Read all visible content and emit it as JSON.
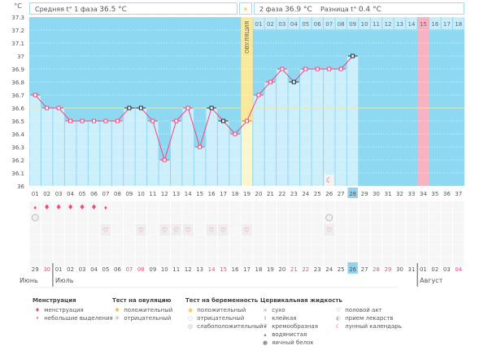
{
  "header": {
    "phase1_label": "Средняя t° 1 фаза",
    "phase1_value": "36.5 °C",
    "phase2_label": "2 фаза",
    "phase2_value": "36.9 °C",
    "diff_label": "Разница t°",
    "diff_value": "0.4 °C"
  },
  "colors": {
    "plot_bg": "#8fd8f2",
    "bar": "#cdeefb",
    "line": "#f0487a",
    "coverline": "#f5ec8c",
    "ovulation": "#fbe89a",
    "pink_col": "#f7b3c3",
    "highlight": "#8fd3ee",
    "weekend": "#f0487a"
  },
  "chart_data": {
    "type": "line",
    "yunit": "°C",
    "ylim": [
      36,
      37.3
    ],
    "yticks": [
      "36",
      "36.1",
      "36.2",
      "36.3",
      "36.4",
      "36.5",
      "36.6",
      "36.7",
      "36.8",
      "36.9",
      "37",
      "37.1",
      "37.2",
      "37.3"
    ],
    "cycle_days": [
      "01",
      "02",
      "03",
      "04",
      "05",
      "06",
      "07",
      "08",
      "09",
      "10",
      "11",
      "12",
      "13",
      "14",
      "15",
      "16",
      "17",
      "18",
      "19",
      "20",
      "21",
      "22",
      "23",
      "24",
      "25",
      "26",
      "27",
      "28",
      "29",
      "30",
      "31",
      "32",
      "33",
      "34",
      "35",
      "36",
      "37"
    ],
    "temperatures": [
      36.7,
      36.6,
      36.6,
      36.5,
      36.5,
      36.5,
      36.5,
      36.5,
      36.6,
      36.6,
      36.5,
      36.2,
      36.5,
      36.6,
      36.3,
      36.6,
      36.5,
      36.4,
      36.5,
      36.7,
      36.8,
      36.9,
      36.8,
      36.9,
      36.9,
      36.9,
      36.9,
      37.0
    ],
    "marked_black_days": [
      9,
      10,
      16,
      17,
      23,
      28
    ],
    "coverline": 36.6,
    "ovulation_day": 19,
    "ovulation_label": "ОВУЛЯЦИЯ",
    "phase2_days": [
      "01",
      "02",
      "03",
      "04",
      "05",
      "06",
      "07",
      "08",
      "09",
      "10",
      "11",
      "12",
      "13",
      "14",
      "15",
      "16",
      "17",
      "18"
    ],
    "expected_period_phase2_day": 15,
    "current_day": 28,
    "moon_day": 26
  },
  "calendar": {
    "dates": [
      "29",
      "30",
      "01",
      "02",
      "03",
      "04",
      "05",
      "06",
      "07",
      "08",
      "09",
      "10",
      "11",
      "12",
      "13",
      "14",
      "15",
      "16",
      "17",
      "18",
      "19",
      "20",
      "21",
      "22",
      "23",
      "24",
      "25",
      "26",
      "27",
      "28",
      "29",
      "30",
      "31",
      "01",
      "02",
      "03",
      "04"
    ],
    "weekend_indexes": [
      2,
      9,
      10,
      16,
      17,
      23,
      24,
      30,
      31,
      37
    ],
    "months": [
      {
        "name": "Июнь",
        "start": 1
      },
      {
        "name": "Июль",
        "start": 3
      },
      {
        "name": "Август",
        "start": 34
      }
    ],
    "menstruation": {
      "1": "small",
      "2": "big",
      "3": "big",
      "4": "big",
      "5": "big",
      "6": "big",
      "7": "small"
    },
    "pregnancy_test_negative_days": [
      1,
      26
    ],
    "intercourse_days": [
      7,
      10,
      12,
      13,
      14,
      16,
      17,
      19,
      26
    ]
  },
  "legend": [
    {
      "title": "Менструация",
      "items": [
        {
          "icon": "drop-big-icon",
          "label": "менструация"
        },
        {
          "icon": "drop-small-icon",
          "label": "небольшие выделения"
        }
      ]
    },
    {
      "title": "Тест на овуляцию",
      "items": [
        {
          "icon": "sun-positive-icon",
          "label": "положительный"
        },
        {
          "icon": "sun-negative-icon",
          "label": "отрицательный"
        }
      ]
    },
    {
      "title": "Тест на беременность",
      "items": [
        {
          "icon": "circle-positive-icon",
          "label": "положительный"
        },
        {
          "icon": "circle-negative-icon",
          "label": "отрицательный"
        },
        {
          "icon": "circle-weak-icon",
          "label": "слабоположительный"
        }
      ]
    },
    {
      "title": "Цервикальная жидкость",
      "items": [
        {
          "icon": "cross-icon",
          "label": "сухо"
        },
        {
          "icon": "sticky-icon",
          "label": "клейкая"
        },
        {
          "icon": "creamy-icon",
          "label": "кремообразная"
        },
        {
          "icon": "watery-icon",
          "label": "водянистая"
        },
        {
          "icon": "egg-white-icon",
          "label": "яичный белок"
        }
      ]
    },
    {
      "title": "",
      "items": [
        {
          "icon": "heart-icon",
          "label": "половой акт"
        },
        {
          "icon": "pill-icon",
          "label": "прием лекарств"
        },
        {
          "icon": "moon-icon",
          "label": "лунный календарь"
        }
      ]
    }
  ]
}
